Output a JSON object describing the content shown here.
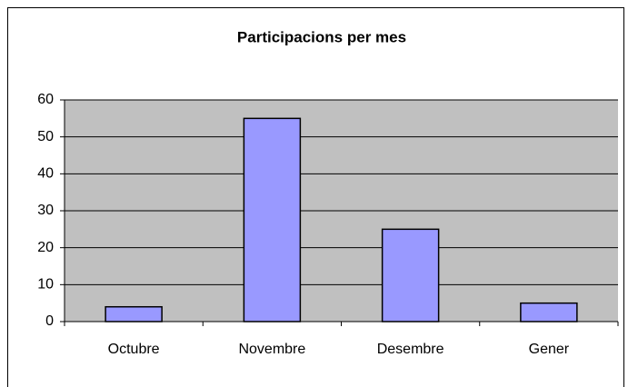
{
  "chart_data": {
    "type": "bar",
    "title": "Participacions per mes",
    "categories": [
      "Octubre",
      "Novembre",
      "Desembre",
      "Gener"
    ],
    "values": [
      4,
      55,
      25,
      5
    ],
    "color": "#9999ff",
    "ylim": [
      0,
      60
    ],
    "yticks": [
      0,
      10,
      20,
      30,
      40,
      50,
      60
    ],
    "grid": true
  }
}
